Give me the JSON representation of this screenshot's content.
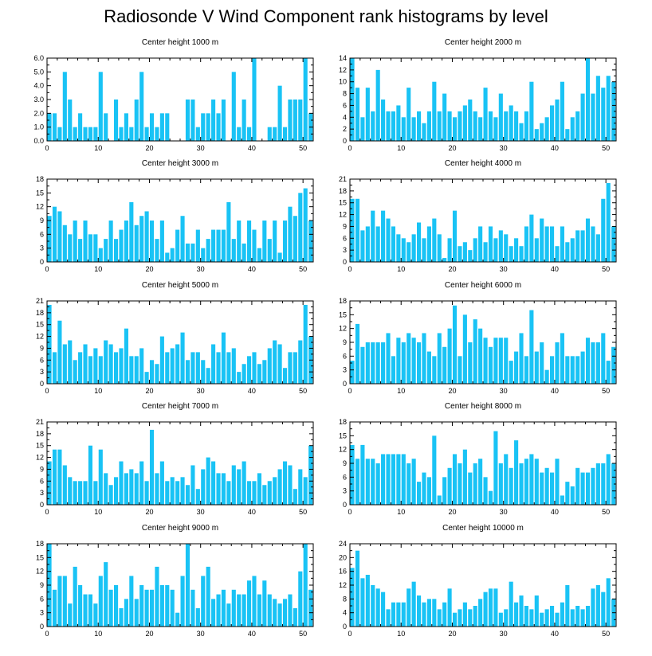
{
  "figure_title": "Radiosonde V Wind Component rank histograms by level",
  "bar_color": "#19c3f5",
  "chart_data": [
    {
      "type": "bar",
      "title": "Center height 1000 m",
      "xlim": [
        0,
        52
      ],
      "ylim": [
        0,
        6
      ],
      "xticks": [
        0,
        10,
        20,
        30,
        40,
        50
      ],
      "yticks": [
        0,
        1,
        2,
        3,
        4,
        5,
        6
      ],
      "ytick_labels": [
        "0.0",
        "1.0",
        "2.0",
        "3.0",
        "4.0",
        "5.0",
        "6.0"
      ],
      "values": [
        2,
        2,
        1,
        5,
        3,
        1,
        2,
        1,
        1,
        1,
        5,
        2,
        0,
        3,
        1,
        2,
        1,
        3,
        5,
        1,
        2,
        1,
        2,
        2,
        0,
        0,
        0,
        3,
        3,
        1,
        2,
        2,
        3,
        2,
        3,
        0,
        5,
        1,
        3,
        1,
        6,
        0,
        0,
        1,
        1,
        4,
        1,
        3,
        3,
        3,
        6,
        2
      ]
    },
    {
      "type": "bar",
      "title": "Center height 2000 m",
      "xlim": [
        0,
        52
      ],
      "ylim": [
        0,
        14
      ],
      "xticks": [
        0,
        10,
        20,
        30,
        40,
        50
      ],
      "yticks": [
        0,
        2,
        4,
        6,
        8,
        10,
        12,
        14
      ],
      "ytick_labels": [
        "0",
        "2",
        "4",
        "6",
        "8",
        "10",
        "12",
        "14"
      ],
      "values": [
        14,
        9,
        4,
        9,
        5,
        12,
        7,
        5,
        5,
        6,
        4,
        9,
        4,
        5,
        3,
        5,
        10,
        5,
        8,
        5,
        4,
        5,
        6,
        7,
        5,
        4,
        9,
        5,
        4,
        8,
        5,
        6,
        5,
        3,
        5,
        10,
        2,
        3,
        4,
        6,
        7,
        10,
        2,
        4,
        5,
        8,
        14,
        8,
        11,
        9,
        11,
        10
      ]
    },
    {
      "type": "bar",
      "title": "Center height 3000 m",
      "xlim": [
        0,
        52
      ],
      "ylim": [
        0,
        18
      ],
      "xticks": [
        0,
        10,
        20,
        30,
        40,
        50
      ],
      "yticks": [
        0,
        3,
        6,
        9,
        12,
        15,
        18
      ],
      "ytick_labels": [
        "0",
        "3",
        "6",
        "9",
        "12",
        "15",
        "18"
      ],
      "values": [
        10,
        12,
        11,
        8,
        6,
        9,
        5,
        9,
        6,
        6,
        3,
        5,
        9,
        5,
        7,
        9,
        13,
        8,
        10,
        11,
        9,
        5,
        9,
        2,
        3,
        7,
        10,
        4,
        4,
        7,
        3,
        5,
        7,
        7,
        7,
        13,
        5,
        9,
        4,
        9,
        7,
        3,
        9,
        5,
        9,
        2,
        9,
        12,
        10,
        15,
        16,
        9
      ]
    },
    {
      "type": "bar",
      "title": "Center height 4000 m",
      "xlim": [
        0,
        52
      ],
      "ylim": [
        0,
        21
      ],
      "xticks": [
        0,
        10,
        20,
        30,
        40,
        50
      ],
      "yticks": [
        0,
        3,
        6,
        9,
        12,
        15,
        18,
        21
      ],
      "ytick_labels": [
        "0",
        "3",
        "6",
        "9",
        "12",
        "15",
        "18",
        "21"
      ],
      "values": [
        16,
        16,
        8,
        9,
        13,
        9,
        13,
        11,
        9,
        7,
        6,
        5,
        7,
        10,
        6,
        9,
        11,
        7,
        1,
        6,
        13,
        4,
        5,
        3,
        6,
        9,
        5,
        9,
        6,
        8,
        7,
        4,
        6,
        4,
        9,
        12,
        6,
        11,
        9,
        9,
        4,
        9,
        5,
        6,
        8,
        8,
        11,
        9,
        7,
        16,
        20,
        9
      ]
    },
    {
      "type": "bar",
      "title": "Center height 5000 m",
      "xlim": [
        0,
        52
      ],
      "ylim": [
        0,
        21
      ],
      "xticks": [
        0,
        10,
        20,
        30,
        40,
        50
      ],
      "yticks": [
        0,
        3,
        6,
        9,
        12,
        15,
        18,
        21
      ],
      "ytick_labels": [
        "0",
        "3",
        "6",
        "9",
        "12",
        "15",
        "18",
        "21"
      ],
      "values": [
        20,
        8,
        16,
        10,
        11,
        6,
        8,
        10,
        7,
        9,
        7,
        11,
        10,
        8,
        9,
        14,
        7,
        7,
        9,
        3,
        6,
        5,
        12,
        8,
        9,
        10,
        13,
        6,
        8,
        8,
        6,
        4,
        10,
        8,
        13,
        8,
        9,
        3,
        5,
        7,
        8,
        5,
        6,
        9,
        11,
        10,
        4,
        8,
        8,
        11,
        20,
        12
      ]
    },
    {
      "type": "bar",
      "title": "Center height 6000 m",
      "xlim": [
        0,
        52
      ],
      "ylim": [
        0,
        18
      ],
      "xticks": [
        0,
        10,
        20,
        30,
        40,
        50
      ],
      "yticks": [
        0,
        3,
        6,
        9,
        12,
        15,
        18
      ],
      "ytick_labels": [
        "0",
        "3",
        "6",
        "9",
        "12",
        "15",
        "18"
      ],
      "values": [
        5,
        13,
        8,
        9,
        9,
        9,
        9,
        11,
        6,
        10,
        9,
        11,
        10,
        9,
        11,
        7,
        6,
        11,
        8,
        12,
        17,
        6,
        15,
        9,
        14,
        12,
        10,
        8,
        10,
        10,
        10,
        5,
        7,
        11,
        6,
        16,
        7,
        9,
        3,
        6,
        9,
        11,
        6,
        6,
        6,
        7,
        10,
        9,
        9,
        11,
        5,
        8
      ]
    },
    {
      "type": "bar",
      "title": "Center height 7000 m",
      "xlim": [
        0,
        52
      ],
      "ylim": [
        0,
        21
      ],
      "xticks": [
        0,
        10,
        20,
        30,
        40,
        50
      ],
      "yticks": [
        0,
        3,
        6,
        9,
        12,
        15,
        18,
        21
      ],
      "ytick_labels": [
        "0",
        "3",
        "6",
        "9",
        "12",
        "15",
        "18",
        "21"
      ],
      "values": [
        11,
        14,
        14,
        10,
        7,
        6,
        6,
        6,
        15,
        6,
        14,
        8,
        5,
        7,
        11,
        8,
        9,
        8,
        11,
        6,
        19,
        8,
        11,
        6,
        7,
        6,
        7,
        5,
        10,
        4,
        9,
        12,
        11,
        8,
        8,
        6,
        10,
        9,
        11,
        6,
        6,
        8,
        5,
        6,
        7,
        9,
        11,
        10,
        4,
        9,
        7,
        15
      ]
    },
    {
      "type": "bar",
      "title": "Center height 8000 m",
      "xlim": [
        0,
        52
      ],
      "ylim": [
        0,
        18
      ],
      "xticks": [
        0,
        10,
        20,
        30,
        40,
        50
      ],
      "yticks": [
        0,
        3,
        6,
        9,
        12,
        15,
        18
      ],
      "ytick_labels": [
        "0",
        "3",
        "6",
        "9",
        "12",
        "15",
        "18"
      ],
      "values": [
        13,
        10,
        13,
        10,
        10,
        9,
        11,
        11,
        11,
        11,
        11,
        9,
        10,
        5,
        7,
        6,
        15,
        2,
        6,
        8,
        11,
        9,
        12,
        7,
        9,
        10,
        6,
        3,
        16,
        9,
        11,
        8,
        14,
        9,
        10,
        11,
        10,
        7,
        8,
        7,
        10,
        2,
        5,
        4,
        8,
        7,
        7,
        8,
        9,
        9,
        11,
        9
      ]
    },
    {
      "type": "bar",
      "title": "Center height 9000 m",
      "xlim": [
        0,
        52
      ],
      "ylim": [
        0,
        18
      ],
      "xticks": [
        0,
        10,
        20,
        30,
        40,
        50
      ],
      "yticks": [
        0,
        3,
        6,
        9,
        12,
        15,
        18
      ],
      "ytick_labels": [
        "0",
        "3",
        "6",
        "9",
        "12",
        "15",
        "18"
      ],
      "values": [
        18,
        8,
        11,
        11,
        5,
        13,
        9,
        7,
        7,
        5,
        11,
        14,
        8,
        9,
        4,
        6,
        11,
        6,
        9,
        8,
        8,
        13,
        9,
        9,
        8,
        3,
        11,
        18,
        8,
        4,
        11,
        13,
        6,
        7,
        8,
        5,
        8,
        7,
        7,
        10,
        11,
        7,
        10,
        7,
        6,
        5,
        6,
        7,
        4,
        12,
        18,
        8
      ]
    },
    {
      "type": "bar",
      "title": "Center height 10000 m",
      "xlim": [
        0,
        52
      ],
      "ylim": [
        0,
        24
      ],
      "xticks": [
        0,
        10,
        20,
        30,
        40,
        50
      ],
      "yticks": [
        0,
        4,
        8,
        12,
        16,
        20,
        24
      ],
      "ytick_labels": [
        "0",
        "4",
        "8",
        "12",
        "16",
        "20",
        "24"
      ],
      "values": [
        17,
        22,
        14,
        15,
        12,
        11,
        10,
        5,
        7,
        7,
        7,
        11,
        13,
        9,
        7,
        8,
        8,
        5,
        7,
        11,
        4,
        5,
        7,
        5,
        6,
        8,
        10,
        11,
        11,
        4,
        5,
        13,
        7,
        9,
        6,
        5,
        9,
        4,
        5,
        6,
        4,
        7,
        12,
        5,
        6,
        5,
        6,
        11,
        12,
        10,
        14,
        8
      ]
    }
  ]
}
